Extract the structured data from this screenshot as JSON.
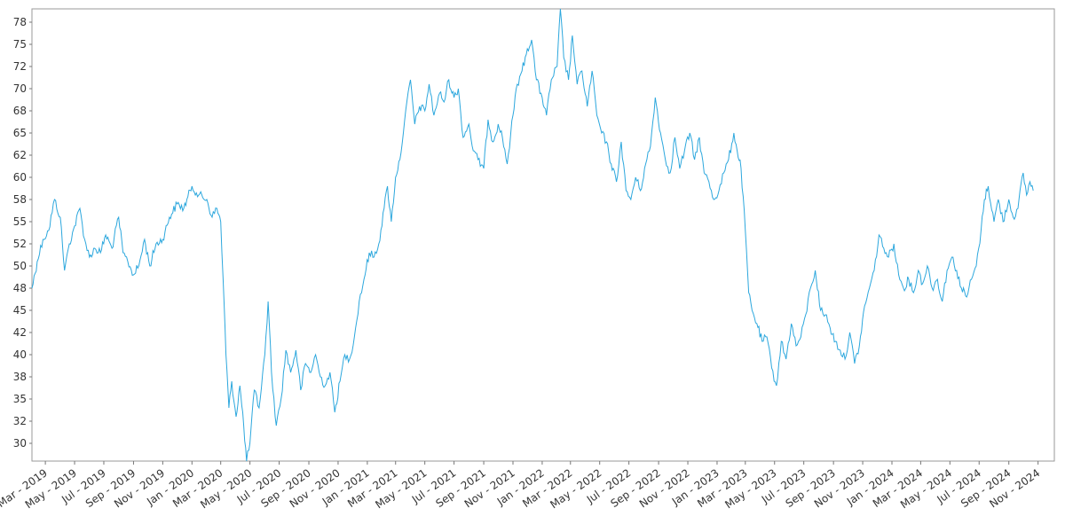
{
  "chart_data": {
    "type": "line",
    "title": "",
    "xlabel": "",
    "ylabel": "",
    "grid": false,
    "line_color": "#2ca7dd",
    "xlim": [
      "2019-02-01",
      "2024-12-05"
    ],
    "ylim": [
      28,
      79
    ],
    "y_ticks": [
      30,
      32.5,
      35,
      37.5,
      40,
      42.5,
      45,
      47.5,
      50,
      52.5,
      55,
      57.5,
      60,
      62.5,
      65,
      67.5,
      70,
      72.5,
      75,
      77.5
    ],
    "y_tick_labels": [
      "30",
      "32",
      "35",
      "38",
      "40",
      "42",
      "45",
      "48",
      "50",
      "52",
      "55",
      "58",
      "60",
      "62",
      "65",
      "68",
      "70",
      "72",
      "75",
      "78"
    ],
    "x_ticks": [
      "2019-03-01",
      "2019-05-01",
      "2019-07-01",
      "2019-09-01",
      "2019-11-01",
      "2020-01-01",
      "2020-03-01",
      "2020-05-01",
      "2020-07-01",
      "2020-09-01",
      "2020-11-01",
      "2021-01-01",
      "2021-03-01",
      "2021-05-01",
      "2021-07-01",
      "2021-09-01",
      "2021-11-01",
      "2022-01-01",
      "2022-03-01",
      "2022-05-01",
      "2022-07-01",
      "2022-09-01",
      "2022-11-01",
      "2023-01-01",
      "2023-03-01",
      "2023-05-01",
      "2023-07-01",
      "2023-09-01",
      "2023-11-01",
      "2024-01-01",
      "2024-03-01",
      "2024-05-01",
      "2024-07-01",
      "2024-09-01",
      "2024-11-01"
    ],
    "x_tick_labels": [
      "Mar - 2019",
      "May - 2019",
      "Jul - 2019",
      "Sep - 2019",
      "Nov - 2019",
      "Jan - 2020",
      "Mar - 2020",
      "May - 2020",
      "Jul - 2020",
      "Sep - 2020",
      "Nov - 2020",
      "Jan - 2021",
      "Mar - 2021",
      "May - 2021",
      "Jul - 2021",
      "Sep - 2021",
      "Nov - 2021",
      "Jan - 2022",
      "Mar - 2022",
      "May - 2022",
      "Jul - 2022",
      "Sep - 2022",
      "Nov - 2022",
      "Jan - 2023",
      "Mar - 2023",
      "May - 2023",
      "Jul - 2023",
      "Sep - 2023",
      "Nov - 2023",
      "Jan - 2024",
      "Mar - 2024",
      "May - 2024",
      "Jul - 2024",
      "Sep - 2024",
      "Nov - 2024"
    ],
    "series": [
      {
        "points": [
          [
            "2019-02-01",
            47.5
          ],
          [
            "2019-02-12",
            50.5
          ],
          [
            "2019-02-24",
            53.0
          ],
          [
            "2019-03-08",
            54.0
          ],
          [
            "2019-03-20",
            57.5
          ],
          [
            "2019-04-01",
            55.5
          ],
          [
            "2019-04-10",
            49.5
          ],
          [
            "2019-04-20",
            52.5
          ],
          [
            "2019-05-01",
            54.5
          ],
          [
            "2019-05-12",
            56.5
          ],
          [
            "2019-05-22",
            53.0
          ],
          [
            "2019-06-01",
            51.0
          ],
          [
            "2019-06-12",
            52.0
          ],
          [
            "2019-06-24",
            51.5
          ],
          [
            "2019-07-05",
            53.5
          ],
          [
            "2019-07-18",
            52.0
          ],
          [
            "2019-08-01",
            55.5
          ],
          [
            "2019-08-10",
            51.5
          ],
          [
            "2019-08-20",
            50.5
          ],
          [
            "2019-09-01",
            49.0
          ],
          [
            "2019-09-12",
            50.0
          ],
          [
            "2019-09-24",
            53.0
          ],
          [
            "2019-10-05",
            50.0
          ],
          [
            "2019-10-18",
            52.5
          ],
          [
            "2019-11-01",
            53.0
          ],
          [
            "2019-11-15",
            55.5
          ],
          [
            "2019-12-01",
            57.0
          ],
          [
            "2019-12-15",
            56.5
          ],
          [
            "2020-01-01",
            59.0
          ],
          [
            "2020-01-15",
            58.0
          ],
          [
            "2020-02-01",
            57.5
          ],
          [
            "2020-02-12",
            55.5
          ],
          [
            "2020-02-22",
            56.5
          ],
          [
            "2020-03-01",
            55.0
          ],
          [
            "2020-03-06",
            48.5
          ],
          [
            "2020-03-12",
            40.0
          ],
          [
            "2020-03-18",
            34.0
          ],
          [
            "2020-03-24",
            37.0
          ],
          [
            "2020-04-02",
            33.0
          ],
          [
            "2020-04-10",
            36.5
          ],
          [
            "2020-04-18",
            32.0
          ],
          [
            "2020-04-24",
            28.0
          ],
          [
            "2020-05-01",
            30.0
          ],
          [
            "2020-05-10",
            36.0
          ],
          [
            "2020-05-20",
            34.0
          ],
          [
            "2020-06-01",
            40.0
          ],
          [
            "2020-06-08",
            46.0
          ],
          [
            "2020-06-15",
            38.0
          ],
          [
            "2020-06-25",
            32.0
          ],
          [
            "2020-07-05",
            35.0
          ],
          [
            "2020-07-15",
            40.5
          ],
          [
            "2020-07-25",
            38.0
          ],
          [
            "2020-08-05",
            40.5
          ],
          [
            "2020-08-15",
            36.0
          ],
          [
            "2020-08-25",
            39.0
          ],
          [
            "2020-09-05",
            38.0
          ],
          [
            "2020-09-15",
            40.0
          ],
          [
            "2020-09-25",
            37.5
          ],
          [
            "2020-10-05",
            36.5
          ],
          [
            "2020-10-15",
            38.0
          ],
          [
            "2020-10-25",
            33.5
          ],
          [
            "2020-11-05",
            37.0
          ],
          [
            "2020-11-15",
            40.0
          ],
          [
            "2020-11-25",
            39.5
          ],
          [
            "2020-12-05",
            42.0
          ],
          [
            "2020-12-15",
            46.0
          ],
          [
            "2020-12-25",
            48.5
          ],
          [
            "2021-01-05",
            51.5
          ],
          [
            "2021-01-15",
            51.0
          ],
          [
            "2021-01-25",
            52.5
          ],
          [
            "2021-02-05",
            56.5
          ],
          [
            "2021-02-12",
            59.0
          ],
          [
            "2021-02-20",
            55.0
          ],
          [
            "2021-03-01",
            60.0
          ],
          [
            "2021-03-10",
            62.0
          ],
          [
            "2021-03-20",
            66.5
          ],
          [
            "2021-04-01",
            71.0
          ],
          [
            "2021-04-10",
            66.0
          ],
          [
            "2021-04-20",
            68.0
          ],
          [
            "2021-05-01",
            67.5
          ],
          [
            "2021-05-10",
            70.5
          ],
          [
            "2021-05-20",
            67.0
          ],
          [
            "2021-06-01",
            69.5
          ],
          [
            "2021-06-10",
            68.5
          ],
          [
            "2021-06-20",
            71.0
          ],
          [
            "2021-07-01",
            69.0
          ],
          [
            "2021-07-10",
            70.0
          ],
          [
            "2021-07-20",
            64.5
          ],
          [
            "2021-08-01",
            66.0
          ],
          [
            "2021-08-10",
            63.0
          ],
          [
            "2021-08-20",
            62.0
          ],
          [
            "2021-09-01",
            61.0
          ],
          [
            "2021-09-10",
            66.5
          ],
          [
            "2021-09-20",
            64.0
          ],
          [
            "2021-10-01",
            66.0
          ],
          [
            "2021-10-10",
            64.5
          ],
          [
            "2021-10-20",
            61.5
          ],
          [
            "2021-11-01",
            67.0
          ],
          [
            "2021-11-10",
            70.5
          ],
          [
            "2021-11-20",
            72.0
          ],
          [
            "2021-12-01",
            74.5
          ],
          [
            "2021-12-10",
            75.5
          ],
          [
            "2021-12-20",
            71.0
          ],
          [
            "2022-01-01",
            69.0
          ],
          [
            "2022-01-10",
            67.0
          ],
          [
            "2022-01-20",
            71.0
          ],
          [
            "2022-02-01",
            72.5
          ],
          [
            "2022-02-08",
            79.0
          ],
          [
            "2022-02-15",
            73.5
          ],
          [
            "2022-02-25",
            71.0
          ],
          [
            "2022-03-05",
            76.0
          ],
          [
            "2022-03-15",
            70.5
          ],
          [
            "2022-03-25",
            72.0
          ],
          [
            "2022-04-05",
            68.0
          ],
          [
            "2022-04-15",
            72.0
          ],
          [
            "2022-04-25",
            67.0
          ],
          [
            "2022-05-05",
            65.0
          ],
          [
            "2022-05-15",
            64.0
          ],
          [
            "2022-05-25",
            61.5
          ],
          [
            "2022-06-05",
            59.5
          ],
          [
            "2022-06-15",
            64.0
          ],
          [
            "2022-06-25",
            58.5
          ],
          [
            "2022-07-05",
            57.5
          ],
          [
            "2022-07-15",
            60.0
          ],
          [
            "2022-07-25",
            58.5
          ],
          [
            "2022-08-05",
            61.5
          ],
          [
            "2022-08-15",
            63.5
          ],
          [
            "2022-08-25",
            69.0
          ],
          [
            "2022-09-05",
            65.0
          ],
          [
            "2022-09-15",
            62.0
          ],
          [
            "2022-09-25",
            60.5
          ],
          [
            "2022-10-05",
            64.5
          ],
          [
            "2022-10-15",
            61.0
          ],
          [
            "2022-10-25",
            63.0
          ],
          [
            "2022-11-05",
            65.0
          ],
          [
            "2022-11-15",
            62.0
          ],
          [
            "2022-11-25",
            64.5
          ],
          [
            "2022-12-05",
            60.5
          ],
          [
            "2022-12-15",
            59.5
          ],
          [
            "2022-12-25",
            57.5
          ],
          [
            "2023-01-05",
            58.5
          ],
          [
            "2023-01-15",
            60.5
          ],
          [
            "2023-01-25",
            62.0
          ],
          [
            "2023-02-05",
            65.0
          ],
          [
            "2023-02-12",
            63.0
          ],
          [
            "2023-02-20",
            61.0
          ],
          [
            "2023-03-01",
            54.0
          ],
          [
            "2023-03-08",
            47.0
          ],
          [
            "2023-03-15",
            45.0
          ],
          [
            "2023-03-25",
            43.5
          ],
          [
            "2023-04-05",
            41.5
          ],
          [
            "2023-04-15",
            42.0
          ],
          [
            "2023-04-25",
            38.5
          ],
          [
            "2023-05-05",
            36.5
          ],
          [
            "2023-05-15",
            41.5
          ],
          [
            "2023-05-25",
            39.5
          ],
          [
            "2023-06-05",
            43.5
          ],
          [
            "2023-06-15",
            41.0
          ],
          [
            "2023-06-25",
            42.0
          ],
          [
            "2023-07-05",
            44.5
          ],
          [
            "2023-07-15",
            47.5
          ],
          [
            "2023-07-25",
            49.5
          ],
          [
            "2023-08-05",
            45.0
          ],
          [
            "2023-08-15",
            44.5
          ],
          [
            "2023-08-25",
            43.0
          ],
          [
            "2023-09-05",
            41.5
          ],
          [
            "2023-09-15",
            40.5
          ],
          [
            "2023-09-25",
            39.5
          ],
          [
            "2023-10-05",
            42.5
          ],
          [
            "2023-10-15",
            39.0
          ],
          [
            "2023-10-25",
            41.0
          ],
          [
            "2023-11-05",
            45.5
          ],
          [
            "2023-11-15",
            47.5
          ],
          [
            "2023-11-25",
            49.5
          ],
          [
            "2023-12-05",
            53.5
          ],
          [
            "2023-12-15",
            52.0
          ],
          [
            "2023-12-25",
            51.0
          ],
          [
            "2024-01-05",
            52.5
          ],
          [
            "2024-01-15",
            49.0
          ],
          [
            "2024-01-25",
            47.5
          ],
          [
            "2024-02-05",
            48.5
          ],
          [
            "2024-02-15",
            47.0
          ],
          [
            "2024-02-25",
            49.5
          ],
          [
            "2024-03-05",
            48.0
          ],
          [
            "2024-03-15",
            50.0
          ],
          [
            "2024-03-25",
            47.5
          ],
          [
            "2024-04-05",
            48.5
          ],
          [
            "2024-04-15",
            46.0
          ],
          [
            "2024-04-25",
            49.5
          ],
          [
            "2024-05-05",
            51.0
          ],
          [
            "2024-05-15",
            49.5
          ],
          [
            "2024-05-25",
            47.5
          ],
          [
            "2024-06-05",
            46.5
          ],
          [
            "2024-06-15",
            48.5
          ],
          [
            "2024-06-25",
            50.0
          ],
          [
            "2024-07-05",
            54.0
          ],
          [
            "2024-07-12",
            57.5
          ],
          [
            "2024-07-20",
            59.0
          ],
          [
            "2024-08-01",
            55.0
          ],
          [
            "2024-08-10",
            57.5
          ],
          [
            "2024-08-20",
            55.0
          ],
          [
            "2024-09-01",
            57.5
          ],
          [
            "2024-09-10",
            55.5
          ],
          [
            "2024-09-20",
            56.5
          ],
          [
            "2024-10-01",
            60.5
          ],
          [
            "2024-10-08",
            58.0
          ],
          [
            "2024-10-15",
            59.5
          ],
          [
            "2024-10-22",
            58.5
          ]
        ]
      }
    ]
  }
}
